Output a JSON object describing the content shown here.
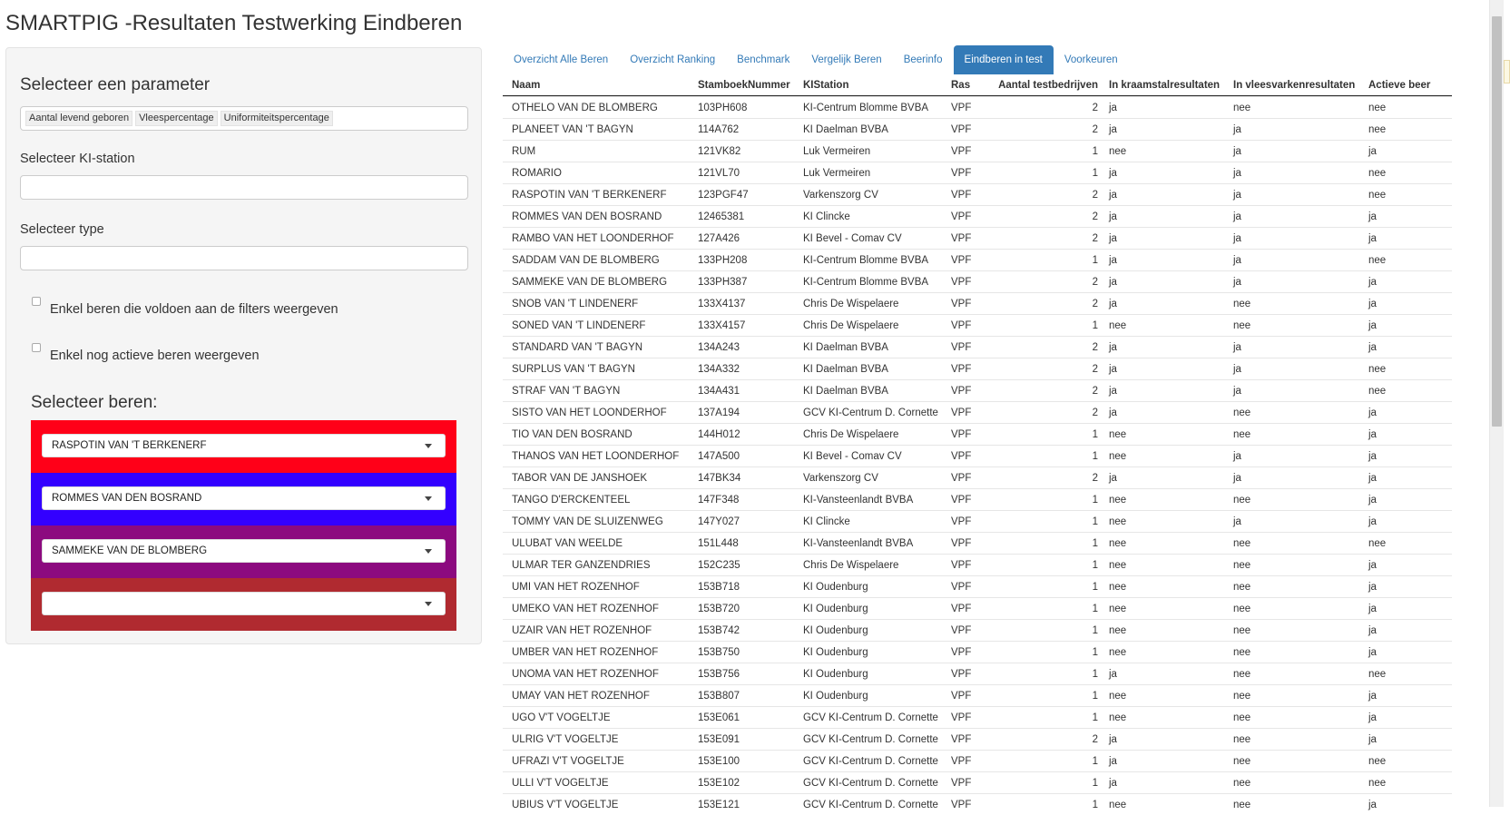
{
  "title": "SMARTPIG -Resultaten Testwerking Eindberen",
  "sidebar": {
    "parameter_label": "Selecteer een parameter",
    "parameters": [
      "Aantal levend geboren",
      "Vleespercentage",
      "Uniformiteitspercentage"
    ],
    "station_label": "Selecteer KI-station",
    "type_label": "Selecteer type",
    "checkbox_filters_label": "Enkel beren die voldoen aan de filters weergeven",
    "checkbox_active_label": "Enkel nog actieve beren weergeven",
    "beren_title": "Selecteer beren:",
    "beren": [
      {
        "value": "RASPOTIN VAN 'T BERKENERF",
        "color": "#ff0018"
      },
      {
        "value": "ROMMES VAN DEN BOSRAND",
        "color": "#3300ff"
      },
      {
        "value": "SAMMEKE VAN DE BLOMBERG",
        "color": "#8c0a7f"
      },
      {
        "value": "",
        "color": "#b02a30"
      }
    ]
  },
  "tabs": [
    {
      "label": "Overzicht Alle Beren",
      "active": false
    },
    {
      "label": "Overzicht Ranking",
      "active": false
    },
    {
      "label": "Benchmark",
      "active": false
    },
    {
      "label": "Vergelijk Beren",
      "active": false
    },
    {
      "label": "Beerinfo",
      "active": false
    },
    {
      "label": "Eindberen in test",
      "active": true
    },
    {
      "label": "Voorkeuren",
      "active": false
    }
  ],
  "table": {
    "columns": [
      "Naam",
      "StamboekNummer",
      "KIStation",
      "Ras",
      "Aantal testbedrijven",
      "In kraamstalresultaten",
      "In vleesvarkenresultaten",
      "Actieve beer"
    ],
    "rows": [
      [
        "OTHELO VAN DE BLOMBERG",
        "103PH608",
        "KI-Centrum Blomme BVBA",
        "VPF",
        "2",
        "ja",
        "nee",
        "nee"
      ],
      [
        "PLANEET VAN 'T BAGYN",
        "114A762",
        "KI Daelman BVBA",
        "VPF",
        "2",
        "ja",
        "ja",
        "nee"
      ],
      [
        "RUM",
        "121VK82",
        "Luk Vermeiren",
        "VPF",
        "1",
        "nee",
        "ja",
        "ja"
      ],
      [
        "ROMARIO",
        "121VL70",
        "Luk Vermeiren",
        "VPF",
        "1",
        "ja",
        "ja",
        "nee"
      ],
      [
        "RASPOTIN VAN 'T BERKENERF",
        "123PGF47",
        "Varkenszorg CV",
        "VPF",
        "2",
        "ja",
        "ja",
        "nee"
      ],
      [
        "ROMMES VAN DEN BOSRAND",
        "12465381",
        "KI Clincke",
        "VPF",
        "2",
        "ja",
        "ja",
        "ja"
      ],
      [
        "RAMBO VAN HET LOONDERHOF",
        "127A426",
        "KI Bevel - Comav CV",
        "VPF",
        "2",
        "ja",
        "ja",
        "ja"
      ],
      [
        "SADDAM VAN DE BLOMBERG",
        "133PH208",
        "KI-Centrum Blomme BVBA",
        "VPF",
        "1",
        "ja",
        "ja",
        "nee"
      ],
      [
        "SAMMEKE VAN DE BLOMBERG",
        "133PH387",
        "KI-Centrum Blomme BVBA",
        "VPF",
        "2",
        "ja",
        "ja",
        "ja"
      ],
      [
        "SNOB VAN 'T LINDENERF",
        "133X4137",
        "Chris De Wispelaere",
        "VPF",
        "2",
        "ja",
        "nee",
        "ja"
      ],
      [
        "SONED VAN 'T LINDENERF",
        "133X4157",
        "Chris De Wispelaere",
        "VPF",
        "1",
        "nee",
        "nee",
        "ja"
      ],
      [
        "STANDARD VAN 'T BAGYN",
        "134A243",
        "KI Daelman BVBA",
        "VPF",
        "2",
        "ja",
        "ja",
        "ja"
      ],
      [
        "SURPLUS VAN 'T BAGYN",
        "134A332",
        "KI Daelman BVBA",
        "VPF",
        "2",
        "ja",
        "ja",
        "nee"
      ],
      [
        "STRAF VAN 'T BAGYN",
        "134A431",
        "KI Daelman BVBA",
        "VPF",
        "2",
        "ja",
        "ja",
        "nee"
      ],
      [
        "SISTO VAN HET LOONDERHOF",
        "137A194",
        "GCV KI-Centrum D. Cornette",
        "VPF",
        "2",
        "ja",
        "nee",
        "ja"
      ],
      [
        "TIO VAN DEN BOSRAND",
        "144H012",
        "Chris De Wispelaere",
        "VPF",
        "1",
        "nee",
        "nee",
        "ja"
      ],
      [
        "THANOS VAN HET LOONDERHOF",
        "147A500",
        "KI Bevel - Comav CV",
        "VPF",
        "1",
        "nee",
        "ja",
        "ja"
      ],
      [
        "TABOR VAN DE JANSHOEK",
        "147BK34",
        "Varkenszorg CV",
        "VPF",
        "2",
        "ja",
        "ja",
        "ja"
      ],
      [
        "TANGO D'ERCKENTEEL",
        "147F348",
        "KI-Vansteenlandt BVBA",
        "VPF",
        "1",
        "nee",
        "nee",
        "ja"
      ],
      [
        "TOMMY VAN DE SLUIZENWEG",
        "147Y027",
        "KI Clincke",
        "VPF",
        "1",
        "nee",
        "ja",
        "ja"
      ],
      [
        "ULUBAT VAN WEELDE",
        "151L448",
        "KI-Vansteenlandt BVBA",
        "VPF",
        "1",
        "nee",
        "nee",
        "nee"
      ],
      [
        "ULMAR TER GANZENDRIES",
        "152C235",
        "Chris De Wispelaere",
        "VPF",
        "1",
        "nee",
        "nee",
        "ja"
      ],
      [
        "UMI VAN HET ROZENHOF",
        "153B718",
        "KI Oudenburg",
        "VPF",
        "1",
        "nee",
        "nee",
        "ja"
      ],
      [
        "UMEKO VAN HET ROZENHOF",
        "153B720",
        "KI Oudenburg",
        "VPF",
        "1",
        "nee",
        "nee",
        "ja"
      ],
      [
        "UZAIR VAN HET ROZENHOF",
        "153B742",
        "KI Oudenburg",
        "VPF",
        "1",
        "nee",
        "nee",
        "ja"
      ],
      [
        "UMBER VAN HET ROZENHOF",
        "153B750",
        "KI Oudenburg",
        "VPF",
        "1",
        "nee",
        "nee",
        "ja"
      ],
      [
        "UNOMA VAN HET ROZENHOF",
        "153B756",
        "KI Oudenburg",
        "VPF",
        "1",
        "ja",
        "nee",
        "nee"
      ],
      [
        "UMAY VAN HET ROZENHOF",
        "153B807",
        "KI Oudenburg",
        "VPF",
        "1",
        "nee",
        "nee",
        "ja"
      ],
      [
        "UGO V'T VOGELTJE",
        "153E061",
        "GCV KI-Centrum D. Cornette",
        "VPF",
        "1",
        "nee",
        "nee",
        "ja"
      ],
      [
        "ULRIG V'T VOGELTJE",
        "153E091",
        "GCV KI-Centrum D. Cornette",
        "VPF",
        "2",
        "ja",
        "nee",
        "ja"
      ],
      [
        "UFRAZI V'T VOGELTJE",
        "153E100",
        "GCV KI-Centrum D. Cornette",
        "VPF",
        "1",
        "ja",
        "nee",
        "nee"
      ],
      [
        "ULLI V'T VOGELTJE",
        "153E102",
        "GCV KI-Centrum D. Cornette",
        "VPF",
        "1",
        "ja",
        "nee",
        "nee"
      ],
      [
        "UBIUS V'T VOGELTJE",
        "153E121",
        "GCV KI-Centrum D. Cornette",
        "VPF",
        "1",
        "nee",
        "nee",
        "ja"
      ]
    ]
  }
}
